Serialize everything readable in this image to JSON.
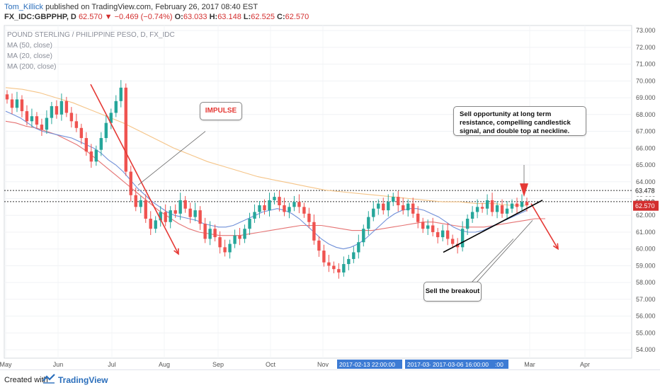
{
  "header": {
    "author": "Tom_Killick",
    "published": "published on TradingView.com, February 26, 2017 08:40 EST",
    "symbol": "FX_IDC:GBPPHP, D",
    "last": "62.570",
    "change": "−0.469 (−0.74%)",
    "ohlc": {
      "o_label": "O:",
      "o": "63.033",
      "h_label": "H:",
      "h": "63.148",
      "l_label": "L:",
      "l": "62.525",
      "c_label": "C:",
      "c": "62.570"
    }
  },
  "legend": {
    "title": "POUND STERLING / PHILIPPINE PESO, D, FX_IDC",
    "ma50": "MA (50, close)",
    "ma20": "MA (20, close)",
    "ma200": "MA (200, close)"
  },
  "annotations": {
    "impulse": "IMPULSE",
    "sell_opportunity": "Sell opportunity at long term resistance, compelling candlestick signal, and double top at neckline.",
    "sell_breakout": "Sell the breakout"
  },
  "price_labels": {
    "resistance": "63.478",
    "neckline": "62.818",
    "last": "62.570"
  },
  "crosshair_labels": {
    "a": "2017-02-13 22:00:00",
    "b": "2017-03-",
    "c": "2017-03-06 16:00:00",
    "d": ":00"
  },
  "footer": {
    "created": "Created with",
    "brand": "TradingView"
  },
  "colors": {
    "up": "#26a69a",
    "down": "#ef5350",
    "ma20": "#6f8fd8",
    "ma50": "#e57373",
    "ma200": "#f5c487",
    "arrow": "#e53935",
    "trend": "#000000",
    "crosshair_label": "#3d7bd4",
    "last_label": "#d32f2f"
  },
  "chart_data": {
    "type": "candlestick",
    "title": "POUND STERLING / PHILIPPINE PESO, D, FX_IDC",
    "x_ticks": [
      "May",
      "Jun",
      "Jul",
      "Aug",
      "Sep",
      "Oct",
      "Nov",
      "Mar",
      "Apr"
    ],
    "y_ticks": [
      54,
      55,
      56,
      57,
      58,
      59,
      60,
      61,
      62,
      63,
      64,
      65,
      66,
      67,
      68,
      69,
      70,
      71,
      72,
      73
    ],
    "ylim": [
      53.5,
      73.3
    ],
    "horizontal_levels": [
      63.478,
      62.818
    ],
    "closes": [
      68.9,
      68.4,
      68.9,
      68.2,
      67.6,
      67.9,
      67.4,
      67.1,
      67.8,
      68.5,
      68.0,
      68.8,
      68.1,
      67.6,
      67.2,
      66.6,
      65.8,
      65.2,
      65.9,
      66.6,
      67.5,
      68.1,
      68.8,
      69.6,
      64.6,
      63.2,
      62.5,
      62.9,
      61.8,
      61.2,
      61.7,
      62.2,
      61.6,
      62.3,
      62.1,
      62.9,
      62.4,
      61.9,
      62.3,
      61.5,
      60.6,
      61.2,
      60.7,
      60.1,
      59.8,
      60.3,
      60.8,
      60.6,
      61.2,
      61.8,
      62.2,
      62.6,
      62.3,
      62.9,
      63.1,
      62.6,
      62.2,
      62.5,
      62.8,
      62.5,
      62.1,
      61.6,
      60.5,
      59.9,
      59.2,
      59.0,
      58.8,
      58.6,
      59.1,
      59.4,
      59.8,
      60.4,
      61.2,
      61.9,
      62.4,
      62.7,
      62.3,
      62.8,
      63.1,
      62.6,
      62.3,
      62.7,
      62.1,
      61.6,
      61.2,
      61.4,
      61.0,
      60.7,
      61.1,
      60.6,
      60.3,
      60.1,
      61.2,
      61.8,
      62.2,
      62.5,
      62.4,
      62.9,
      62.2,
      62.6,
      62.1,
      62.4,
      62.7,
      62.5,
      62.8,
      62.6
    ],
    "ma20": [
      68.2,
      68.0,
      67.8,
      67.5,
      67.2,
      67.0,
      66.9,
      66.8,
      66.7,
      66.6,
      66.4,
      66.2,
      66.0,
      65.7,
      65.3,
      65.0,
      64.6,
      64.1,
      63.6,
      63.2,
      62.8,
      62.5,
      62.2,
      62.0,
      61.9,
      61.8,
      61.7,
      61.5,
      61.4,
      61.3,
      61.3,
      61.4,
      61.6,
      61.8,
      62.0,
      62.2,
      62.3,
      62.4,
      62.3,
      62.1,
      61.8,
      61.4,
      61.0,
      60.6,
      60.3,
      60.1,
      60.0,
      60.1,
      60.3,
      60.6,
      61.0,
      61.4,
      61.8,
      62.1,
      62.3,
      62.4,
      62.4,
      62.3,
      62.1,
      61.9,
      61.6,
      61.3,
      61.1,
      61.0,
      61.0,
      61.1,
      61.3,
      61.5,
      61.7,
      61.9,
      62.1,
      62.3
    ],
    "ma50": [
      67.6,
      67.5,
      67.3,
      67.2,
      67.0,
      66.8,
      66.5,
      66.2,
      65.8,
      65.3,
      64.8,
      64.3,
      63.8,
      63.3,
      62.8,
      62.3,
      61.9,
      61.5,
      61.2,
      61.0,
      60.9,
      60.8,
      60.8,
      60.8,
      60.9,
      61.0,
      61.1,
      61.2,
      61.3,
      61.4,
      61.4,
      61.4,
      61.3,
      61.2,
      61.1,
      61.1,
      61.1,
      61.2,
      61.3,
      61.4,
      61.5,
      61.6,
      61.6,
      61.5,
      61.4,
      61.3,
      61.3,
      61.3,
      61.4,
      61.5,
      61.6,
      61.7,
      61.8,
      61.8
    ],
    "ma200": [
      69.6,
      69.5,
      69.3,
      69.0,
      68.7,
      68.3,
      67.9,
      67.5,
      67.0,
      66.5,
      66.0,
      65.6,
      65.2,
      64.9,
      64.6,
      64.3,
      64.1,
      63.9,
      63.7,
      63.5,
      63.4,
      63.3,
      63.2,
      63.1,
      63.0,
      62.9,
      62.8,
      62.8,
      62.7,
      62.7,
      62.6,
      62.6
    ]
  }
}
